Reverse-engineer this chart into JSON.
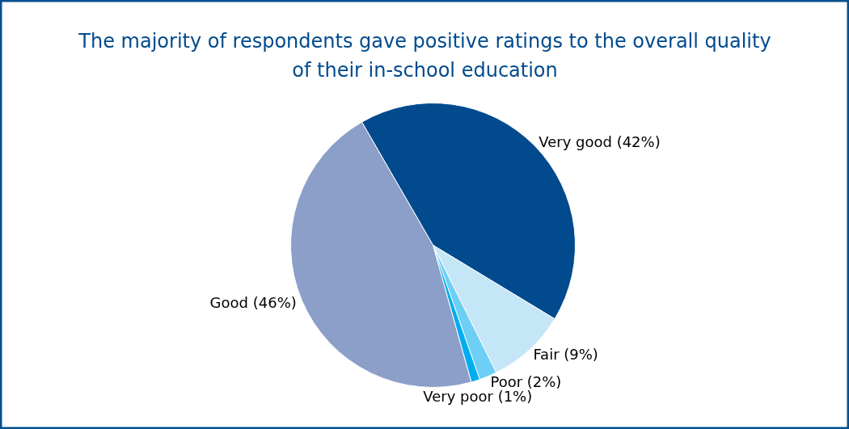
{
  "chart_data": {
    "type": "pie",
    "title": "The majority of respondents gave positive ratings to the overall quality of their in-school education",
    "categories": [
      "Very good",
      "Fair",
      "Poor",
      "Very poor",
      "Good"
    ],
    "values": [
      42,
      9,
      2,
      1,
      46
    ],
    "value_labels": [
      "(42%)",
      "(9%)",
      "(2%)",
      "(1%)",
      "(46%)"
    ],
    "colors": [
      "#004a8d",
      "#c5e6f7",
      "#6dcff6",
      "#00aeef",
      "#8c9fc9"
    ]
  }
}
